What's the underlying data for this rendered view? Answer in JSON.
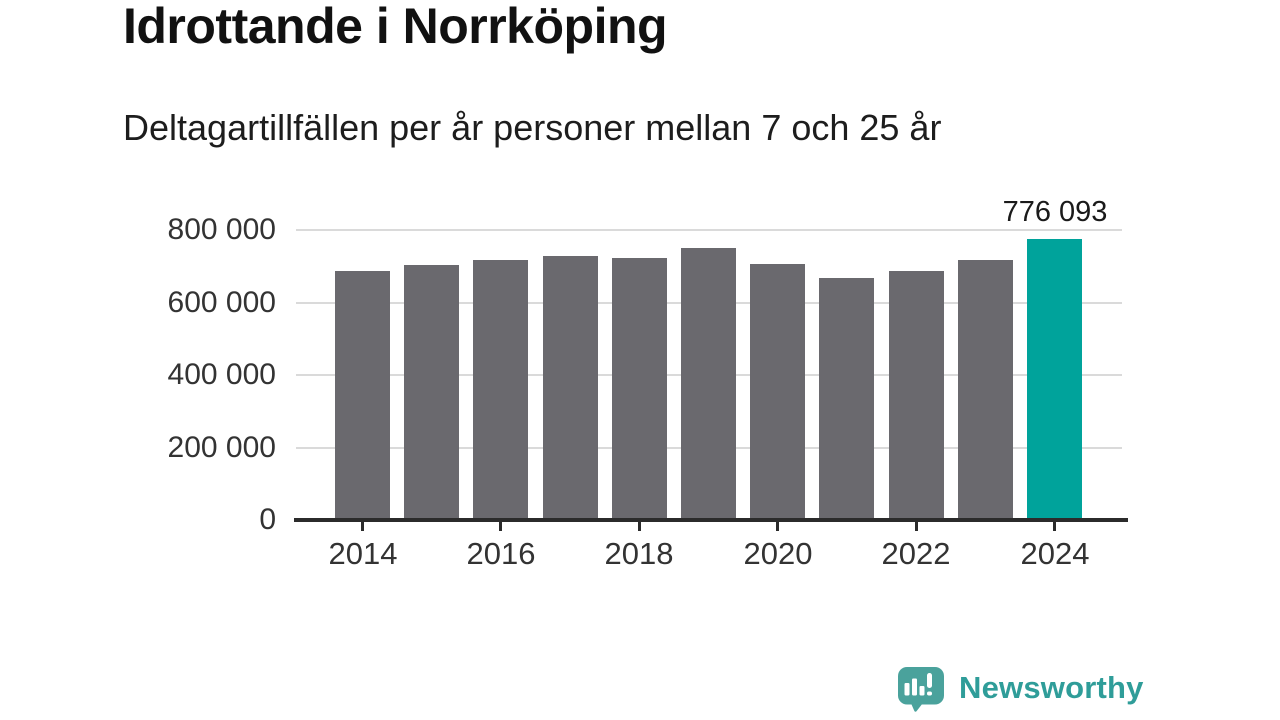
{
  "chart_data": {
    "type": "bar",
    "title": "Idrottande i Norrköping",
    "subtitle": "Deltagartillfällen per år personer mellan 7 och 25 år",
    "categories": [
      "2014",
      "2015",
      "2016",
      "2017",
      "2018",
      "2019",
      "2020",
      "2021",
      "2022",
      "2023",
      "2024"
    ],
    "values": [
      685000,
      703000,
      716000,
      729000,
      721000,
      751000,
      706000,
      668000,
      687000,
      718000,
      776093
    ],
    "highlight": {
      "index": 10,
      "category": "2024",
      "value": 776093,
      "label": "776 093"
    },
    "ylim": [
      0,
      800000
    ],
    "ytick_values": [
      0,
      200000,
      400000,
      600000,
      800000
    ],
    "ytick_labels": [
      "0",
      "200 000",
      "400 000",
      "600 000",
      "800 000"
    ],
    "xtick_indices": [
      0,
      2,
      4,
      6,
      8,
      10
    ],
    "xtick_labels": [
      "2014",
      "2016",
      "2018",
      "2020",
      "2022",
      "2024"
    ],
    "grid": true,
    "legend": "none",
    "colors": {
      "bar": "#6a696e",
      "highlight": "#00a39b",
      "grid": "#dadada",
      "axis": "#2b2b2b",
      "tick_text": "#333333",
      "value_label": "#1a1a1a"
    }
  },
  "footer": {
    "brand": "Newsworthy",
    "logo_icon": "newsworthy-speech-bubble-bar-chart",
    "brand_color": "#2f9d99",
    "icon_color": "#4aa29c"
  }
}
